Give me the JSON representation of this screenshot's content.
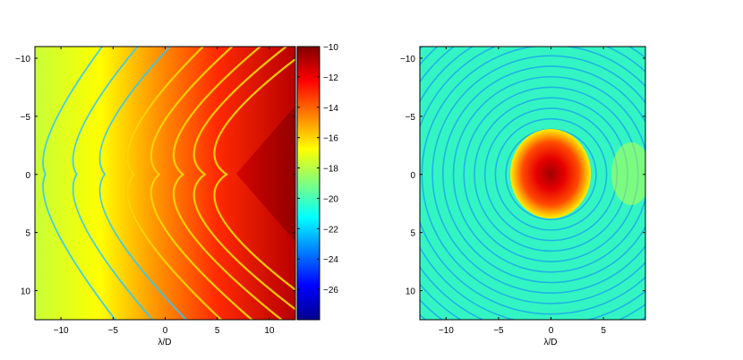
{
  "chart_data": [
    {
      "type": "heatmap",
      "title": "",
      "xlabel": "λ/D",
      "ylabel": "",
      "xlim": [
        -12.5,
        12.5
      ],
      "ylim": [
        -11,
        12.5
      ],
      "y_reversed": true,
      "xticks": [
        -10,
        -5,
        0,
        5,
        10
      ],
      "yticks": [
        -10,
        -5,
        0,
        5,
        10
      ],
      "colormap": "jet",
      "clim": [
        -28,
        -10
      ],
      "colorbar": {
        "ticks": [
          -10,
          -12,
          -14,
          -16,
          -18,
          -20,
          -22,
          -24,
          -26
        ]
      },
      "grid": false,
      "field": {
        "description": "curved interference fringes opening to the left, intensity increasing towards the right",
        "max_value": -10,
        "max_location": [
          11,
          0
        ],
        "background_value": -18
      }
    },
    {
      "type": "heatmap",
      "title": "",
      "xlabel": "λ/D",
      "ylabel": "",
      "xlim": [
        -12.5,
        9
      ],
      "ylim": [
        -11,
        12.5
      ],
      "y_reversed": true,
      "xticks": [
        -10,
        -5,
        0,
        5
      ],
      "yticks": [
        -10,
        -5,
        0,
        5,
        10
      ],
      "colormap": "jet",
      "clim": [
        -28,
        -10
      ],
      "grid": false,
      "field": {
        "description": "central bright spot surrounded by concentric rings",
        "spot_center": [
          0,
          0
        ],
        "spot_radius": 3.6,
        "max_value": -11,
        "ring_level": -19.5
      }
    }
  ]
}
